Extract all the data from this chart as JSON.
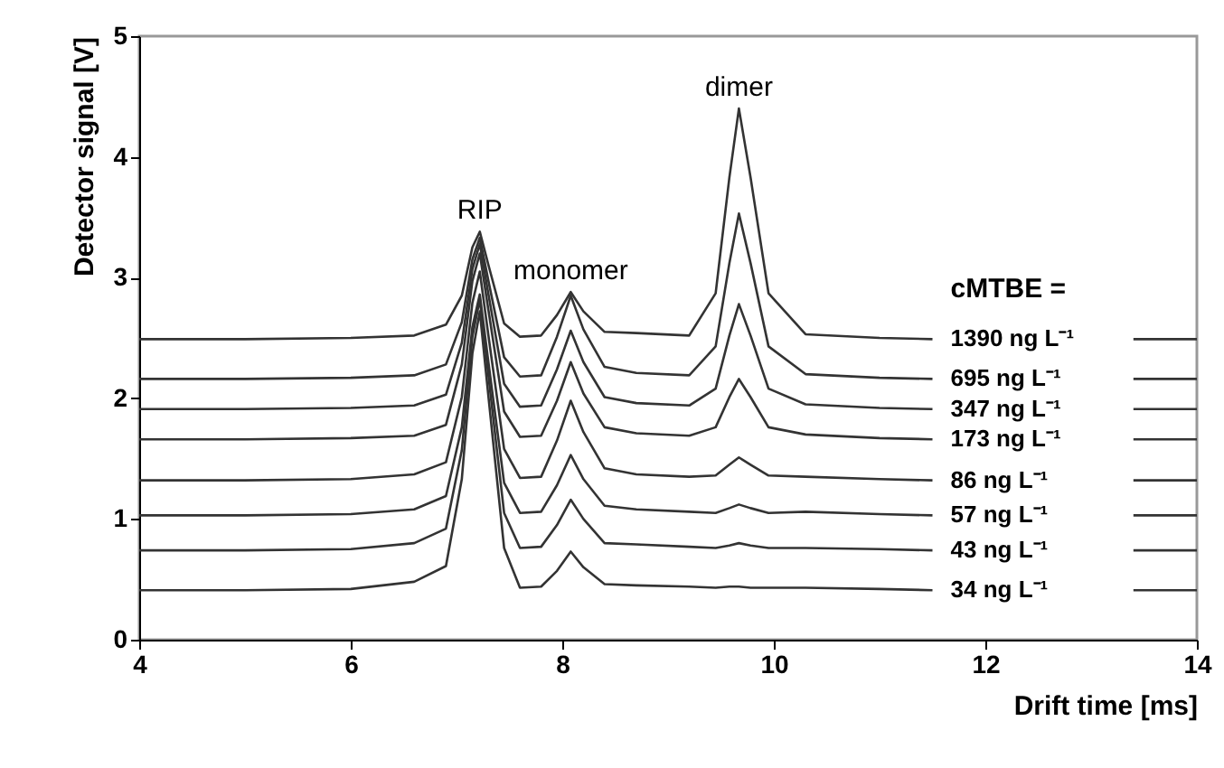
{
  "chart_data": {
    "type": "line",
    "xlabel": "Drift time [ms]",
    "ylabel": "Detector signal [V]",
    "legend_title": "cMTBE =",
    "xlim": [
      4,
      14
    ],
    "xticks": [
      4,
      6,
      8,
      10,
      12,
      14
    ],
    "ylim": [
      0,
      5
    ],
    "yticks": [
      0,
      1,
      2,
      3,
      4,
      5
    ],
    "grid": false,
    "legend": false,
    "marker": "none",
    "line_style": "solid",
    "x": [
      4,
      5,
      6,
      6.6,
      6.9,
      7.05,
      7.15,
      7.22,
      7.3,
      7.45,
      7.6,
      7.8,
      7.95,
      8.08,
      8.2,
      8.4,
      8.7,
      9.2,
      9.45,
      9.58,
      9.67,
      9.78,
      9.95,
      10.3,
      11,
      11.5,
      12.5,
      13.4,
      14
    ],
    "series": [
      {
        "name": "1390 ng L⁻¹",
        "color": "#333333",
        "values": [
          2.49,
          2.49,
          2.5,
          2.52,
          2.61,
          2.85,
          3.25,
          3.38,
          3.11,
          2.62,
          2.51,
          2.52,
          2.69,
          2.88,
          2.72,
          2.55,
          2.54,
          2.52,
          2.87,
          3.83,
          4.4,
          3.83,
          2.87,
          2.53,
          2.5,
          2.49,
          null,
          2.49,
          2.49
        ]
      },
      {
        "name": "695 ng L⁻¹",
        "color": "#333333",
        "values": [
          2.16,
          2.16,
          2.17,
          2.19,
          2.28,
          2.63,
          3.15,
          3.33,
          2.98,
          2.34,
          2.18,
          2.19,
          2.51,
          2.85,
          2.57,
          2.26,
          2.21,
          2.19,
          2.43,
          3.12,
          3.53,
          3.12,
          2.43,
          2.2,
          2.17,
          2.16,
          null,
          2.16,
          2.16
        ]
      },
      {
        "name": "347 ng L⁻¹",
        "color": "#333333",
        "values": [
          1.91,
          1.91,
          1.92,
          1.94,
          2.03,
          2.46,
          3.07,
          3.28,
          2.87,
          2.12,
          1.93,
          1.94,
          2.24,
          2.56,
          2.3,
          2.01,
          1.96,
          1.94,
          2.08,
          2.52,
          2.78,
          2.52,
          2.08,
          1.95,
          1.92,
          1.91,
          null,
          1.91,
          1.91
        ]
      },
      {
        "name": "173 ng L⁻¹",
        "color": "#333333",
        "values": [
          1.66,
          1.66,
          1.67,
          1.69,
          1.78,
          2.28,
          2.97,
          3.2,
          2.74,
          1.89,
          1.68,
          1.69,
          1.98,
          2.3,
          2.04,
          1.76,
          1.71,
          1.69,
          1.76,
          2.01,
          2.16,
          2.01,
          1.76,
          1.7,
          1.67,
          1.66,
          null,
          1.66,
          1.66
        ]
      },
      {
        "name": "86 ng L⁻¹",
        "color": "#333333",
        "values": [
          1.32,
          1.32,
          1.33,
          1.37,
          1.47,
          2.01,
          2.79,
          3.05,
          2.53,
          1.58,
          1.34,
          1.35,
          1.65,
          1.98,
          1.72,
          1.42,
          1.37,
          1.35,
          1.36,
          1.45,
          1.51,
          1.45,
          1.36,
          1.35,
          1.33,
          1.32,
          null,
          1.32,
          1.32
        ]
      },
      {
        "name": "57 ng L⁻¹",
        "color": "#333333",
        "values": [
          1.03,
          1.03,
          1.04,
          1.08,
          1.19,
          1.76,
          2.59,
          2.86,
          2.31,
          1.3,
          1.05,
          1.06,
          1.28,
          1.53,
          1.33,
          1.11,
          1.08,
          1.06,
          1.05,
          1.09,
          1.12,
          1.09,
          1.05,
          1.06,
          1.04,
          1.03,
          null,
          1.03,
          1.03
        ]
      },
      {
        "name": "43 ng L⁻¹",
        "color": "#333333",
        "values": [
          0.74,
          0.74,
          0.75,
          0.8,
          0.92,
          1.57,
          2.51,
          2.82,
          2.2,
          1.05,
          0.76,
          0.77,
          0.95,
          1.16,
          1.0,
          0.8,
          0.79,
          0.77,
          0.76,
          0.78,
          0.8,
          0.78,
          0.76,
          0.76,
          0.75,
          0.74,
          null,
          0.74,
          0.74
        ]
      },
      {
        "name": "34 ng L⁻¹",
        "color": "#333333",
        "values": [
          0.41,
          0.41,
          0.42,
          0.48,
          0.61,
          1.33,
          2.37,
          2.72,
          2.03,
          0.76,
          0.43,
          0.44,
          0.57,
          0.73,
          0.6,
          0.46,
          0.45,
          0.44,
          0.43,
          0.44,
          0.44,
          0.43,
          0.43,
          0.43,
          0.42,
          0.41,
          null,
          0.41,
          0.41
        ]
      }
    ],
    "annotations": [
      {
        "text": "RIP",
        "x": 7.22,
        "y": 3.38
      },
      {
        "text": "monomer",
        "x": 8.08,
        "y": 2.88
      },
      {
        "text": "dimer",
        "x": 9.67,
        "y": 4.4
      }
    ]
  }
}
